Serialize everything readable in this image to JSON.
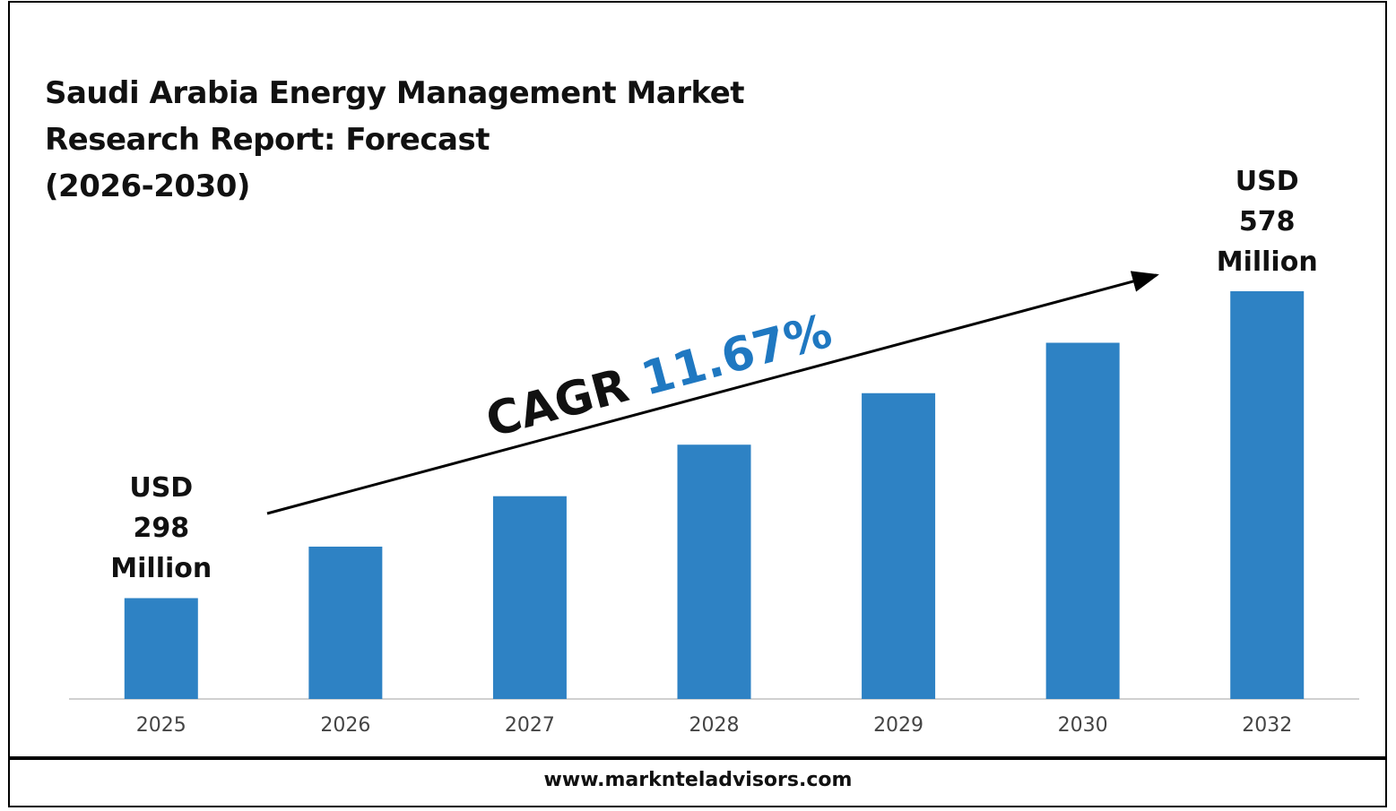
{
  "chart_data": {
    "type": "bar",
    "title": "Saudi Arabia Energy Management Market\nResearch Report: Forecast\n(2026-2030)",
    "categories": [
      "2025",
      "2026",
      "2027",
      "2028",
      "2029",
      "2030",
      "2032"
    ],
    "values": [
      298,
      345,
      391,
      438,
      485,
      531,
      578
    ],
    "value_labels": [
      "USD 298 Million",
      null,
      null,
      null,
      null,
      null,
      "USD 578 Million"
    ],
    "color": "#2e82c4",
    "ylim": [
      206,
      578
    ],
    "annotation": {
      "prefix": "CAGR",
      "value": "11.67%"
    },
    "footer": "www.marknteladvisors.com"
  }
}
